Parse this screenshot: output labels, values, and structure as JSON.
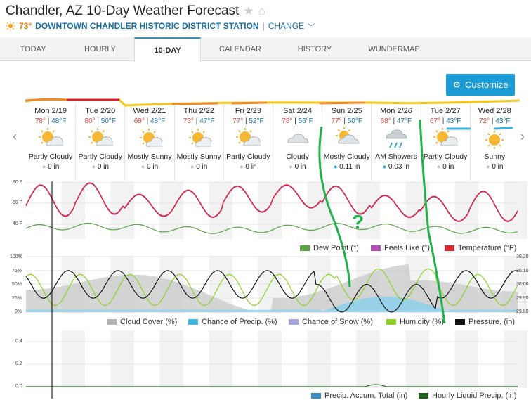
{
  "page": {
    "title": "Chandler, AZ 10-Day Weather Forecast",
    "station_temp": "73°",
    "station_name": "DOWNTOWN CHANDLER HISTORIC DISTRICT STATION",
    "separator": "|",
    "change_label": "CHANGE"
  },
  "tabs": [
    {
      "label": "TODAY"
    },
    {
      "label": "HOURLY"
    },
    {
      "label": "10-DAY"
    },
    {
      "label": "CALENDAR"
    },
    {
      "label": "HISTORY"
    },
    {
      "label": "WUNDERMAP"
    }
  ],
  "customize_label": "Customize",
  "days": [
    {
      "name": "Mon 2/19",
      "hi": "78°",
      "lo": "48°F",
      "cond": "Partly Cloudy",
      "precip": "0 in",
      "icon": "partly-cloudy"
    },
    {
      "name": "Tue 2/20",
      "hi": "80°",
      "lo": "50°F",
      "cond": "Partly Cloudy",
      "precip": "0 in",
      "icon": "partly-cloudy"
    },
    {
      "name": "Wed 2/21",
      "hi": "69°",
      "lo": "48°F",
      "cond": "Mostly Sunny",
      "precip": "0 in",
      "icon": "mostly-sunny"
    },
    {
      "name": "Thu 2/22",
      "hi": "73°",
      "lo": "47°F",
      "cond": "Mostly Sunny",
      "precip": "0 in",
      "icon": "mostly-sunny"
    },
    {
      "name": "Fri 2/23",
      "hi": "77°",
      "lo": "52°F",
      "cond": "Partly Cloudy",
      "precip": "0 in",
      "icon": "partly-cloudy"
    },
    {
      "name": "Sat 2/24",
      "hi": "78°",
      "lo": "56°F",
      "cond": "Cloudy",
      "precip": "0 in",
      "icon": "cloudy"
    },
    {
      "name": "Sun 2/25",
      "hi": "77°",
      "lo": "50°F",
      "cond": "Mostly Cloudy",
      "precip": "0.11 in",
      "icon": "mostly-cloudy"
    },
    {
      "name": "Mon 2/26",
      "hi": "68°",
      "lo": "47°F",
      "cond": "AM Showers",
      "precip": "0.03 in",
      "icon": "showers"
    },
    {
      "name": "Tue 2/27",
      "hi": "67°",
      "lo": "43°F",
      "cond": "Partly Cloudy",
      "precip": "0 in",
      "icon": "partly-cloudy"
    },
    {
      "name": "Wed 2/28",
      "hi": "72°",
      "lo": "43°F",
      "cond": "Sunny",
      "precip": "0 in",
      "icon": "sunny"
    }
  ],
  "charts": {
    "temp_axis": [
      "80 F",
      "60 F",
      "40 F"
    ],
    "temp_legend": [
      "Dew Point (°)",
      "Feels Like (°)",
      "Temperature (°F)"
    ],
    "cloud_axis_left": [
      "100%",
      "75%",
      "50%",
      "25%",
      "0%"
    ],
    "cloud_axis_right": [
      "30.20",
      "30.10",
      "30.00",
      "29.90",
      "29.80"
    ],
    "cloud_legend": [
      "Cloud Cover (%)",
      "Chance of Precip. (%)",
      "Chance of Snow (%)",
      "Humidity (%)",
      "Pressure. (in)"
    ],
    "precip_axis": [
      "0.4",
      "0.2",
      "0.0"
    ],
    "precip_legend": [
      "Precip. Accum. Total (in)",
      "Hourly Liquid Precip. (in)"
    ]
  },
  "annotation_text": "?",
  "colors": {
    "accent": "#1b9bd6",
    "temperature": "#d9232e",
    "feels_like": "#b04fb5",
    "dew_point": "#5aa24a",
    "humidity": "#8fd02a",
    "pressure": "#111111",
    "cloud": "#b4b4b4",
    "precip": "#40b7e0",
    "snow": "#a7a7e0",
    "hourly_liquid": "#1f5f1c"
  }
}
